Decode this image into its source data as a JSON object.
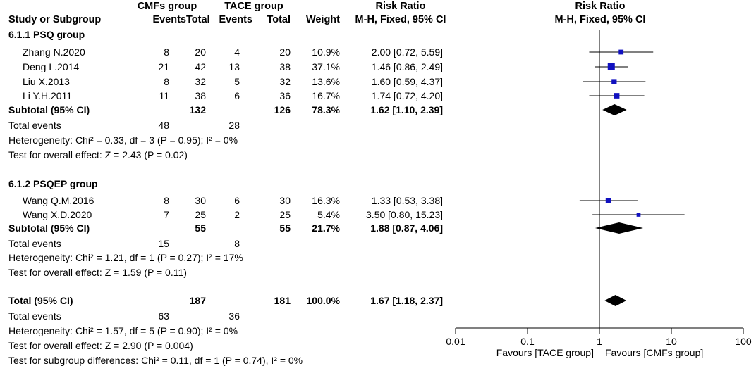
{
  "header": {
    "exp_group": "CMFs group",
    "ctl_group": "TACE group",
    "study_col": "Study or Subgroup",
    "events": "Events",
    "total": "Total",
    "weight": "Weight",
    "rr_title": "Risk Ratio",
    "rr_method": "M-H, Fixed, 95% CI",
    "plot_title": "Risk Ratio",
    "plot_method": "M-H, Fixed, 95% CI"
  },
  "subgroups": [
    {
      "title": "6.1.1 PSQ group",
      "studies": [
        {
          "name": "Zhang N.2020",
          "exp_events": "8",
          "exp_total": "20",
          "ctl_events": "4",
          "ctl_total": "20",
          "weight": "10.9%",
          "ci": "2.00 [0.72, 5.59]"
        },
        {
          "name": "Deng L.2014",
          "exp_events": "21",
          "exp_total": "42",
          "ctl_events": "13",
          "ctl_total": "38",
          "weight": "37.1%",
          "ci": "1.46 [0.86, 2.49]"
        },
        {
          "name": "Liu X.2013",
          "exp_events": "8",
          "exp_total": "32",
          "ctl_events": "5",
          "ctl_total": "32",
          "weight": "13.6%",
          "ci": "1.60 [0.59, 4.37]"
        },
        {
          "name": "Li Y.H.2011",
          "exp_events": "11",
          "exp_total": "38",
          "ctl_events": "6",
          "ctl_total": "36",
          "weight": "16.7%",
          "ci": "1.74 [0.72, 4.20]"
        }
      ],
      "subtotal": {
        "label": "Subtotal (95% CI)",
        "exp_total": "132",
        "ctl_total": "126",
        "weight": "78.3%",
        "ci": "1.62 [1.10, 2.39]"
      },
      "total_events": {
        "label": "Total events",
        "exp": "48",
        "ctl": "28"
      },
      "heterogeneity": "Heterogeneity: Chi² = 0.33, df = 3 (P = 0.95); I² = 0%",
      "overall_effect": "Test for overall effect: Z = 2.43 (P = 0.02)"
    },
    {
      "title": "6.1.2 PSQEP group",
      "studies": [
        {
          "name": "Wang Q.M.2016",
          "exp_events": "8",
          "exp_total": "30",
          "ctl_events": "6",
          "ctl_total": "30",
          "weight": "16.3%",
          "ci": "1.33 [0.53, 3.38]"
        },
        {
          "name": "Wang X.D.2020",
          "exp_events": "7",
          "exp_total": "25",
          "ctl_events": "2",
          "ctl_total": "25",
          "weight": "5.4%",
          "ci": "3.50 [0.80, 15.23]"
        }
      ],
      "subtotal": {
        "label": "Subtotal (95% CI)",
        "exp_total": "55",
        "ctl_total": "55",
        "weight": "21.7%",
        "ci": "1.88 [0.87, 4.06]"
      },
      "total_events": {
        "label": "Total events",
        "exp": "15",
        "ctl": "8"
      },
      "heterogeneity": "Heterogeneity: Chi² = 1.21, df = 1 (P = 0.27); I² = 17%",
      "overall_effect": "Test for overall effect: Z = 1.59 (P = 0.11)"
    }
  ],
  "total": {
    "label": "Total (95% CI)",
    "exp_total": "187",
    "ctl_total": "181",
    "weight": "100.0%",
    "ci": "1.67 [1.18, 2.37]",
    "total_events_label": "Total events",
    "exp_events": "63",
    "ctl_events": "36",
    "heterogeneity": "Heterogeneity: Chi² = 1.57, df = 5 (P = 0.90); I² = 0%",
    "overall_effect": "Test for overall effect: Z = 2.90 (P = 0.004)",
    "subgroup_diff": "Test for subgroup differences: Chi² = 0.11, df = 1 (P = 0.74), I² = 0%"
  },
  "chart_data": {
    "type": "forest",
    "scale": "log",
    "xlim": [
      0.01,
      100
    ],
    "ticks": [
      0.01,
      0.1,
      1,
      10,
      100
    ],
    "tick_labels": [
      "0.01",
      "0.1",
      "1",
      "10",
      "100"
    ],
    "favours_left": "Favours [TACE group]",
    "favours_right": "Favours [CMFs group]",
    "studies": [
      {
        "name": "Zhang N.2020",
        "rr": 2.0,
        "lo": 0.72,
        "hi": 5.59,
        "weight": 10.9
      },
      {
        "name": "Deng L.2014",
        "rr": 1.46,
        "lo": 0.86,
        "hi": 2.49,
        "weight": 37.1
      },
      {
        "name": "Liu X.2013",
        "rr": 1.6,
        "lo": 0.59,
        "hi": 4.37,
        "weight": 13.6
      },
      {
        "name": "Li Y.H.2011",
        "rr": 1.74,
        "lo": 0.72,
        "hi": 4.2,
        "weight": 16.7
      },
      {
        "name": "Wang Q.M.2016",
        "rr": 1.33,
        "lo": 0.53,
        "hi": 3.38,
        "weight": 16.3
      },
      {
        "name": "Wang X.D.2020",
        "rr": 3.5,
        "lo": 0.8,
        "hi": 15.23,
        "weight": 5.4
      }
    ],
    "diamonds": [
      {
        "name": "Subtotal 6.1.1 PSQ group",
        "rr": 1.62,
        "lo": 1.1,
        "hi": 2.39
      },
      {
        "name": "Subtotal 6.1.2 PSQEP group",
        "rr": 1.88,
        "lo": 0.87,
        "hi": 4.06
      },
      {
        "name": "Total",
        "rr": 1.67,
        "lo": 1.18,
        "hi": 2.37
      }
    ],
    "colors": {
      "box": "#1010c0",
      "diamond": "#000000"
    }
  }
}
